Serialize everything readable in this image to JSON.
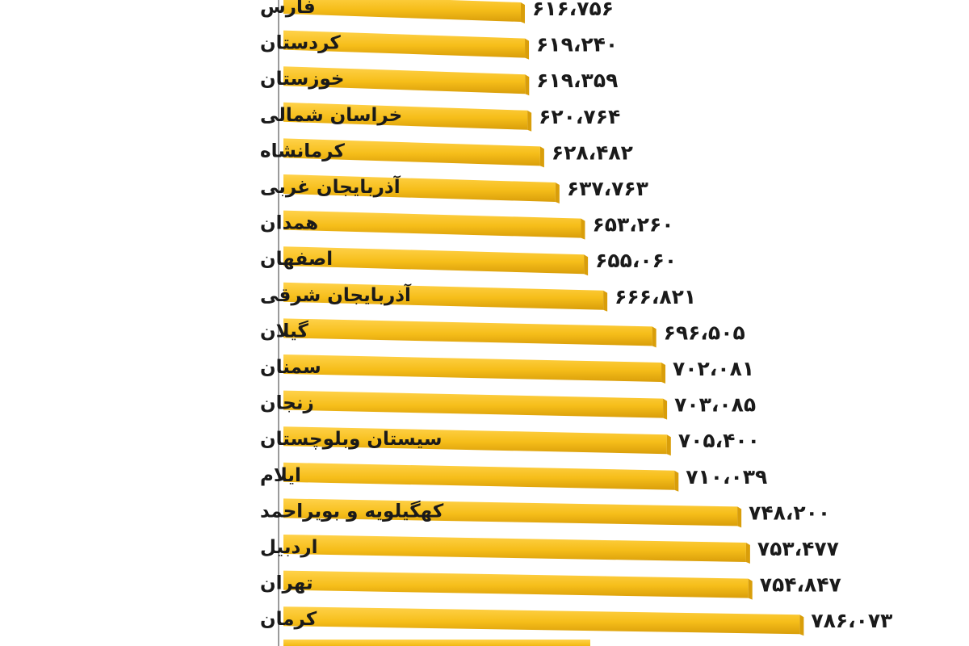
{
  "chart_data": {
    "type": "bar",
    "orientation": "horizontal",
    "categories": [
      "فارس",
      "کردستان",
      "خوزستان",
      "خراسان شمالی",
      "کرمانشاه",
      "آذربایجان غربی",
      "همدان",
      "اصفهان",
      "آذربایجان شرقی",
      "گیلان",
      "سمنان",
      "زنجان",
      "سیستان وبلوچستان",
      "ایلام",
      "کهگیلویه و بویراحمد",
      "اردبیل",
      "تهران",
      "کرمان"
    ],
    "values": [
      616756,
      619240,
      619359,
      620764,
      628482,
      637763,
      653260,
      655060,
      666821,
      696505,
      702081,
      703085,
      705400,
      710039,
      748200,
      753477,
      754847,
      786073
    ],
    "value_labels": [
      "۶۱۶،۷۵۶",
      "۶۱۹،۲۴۰",
      "۶۱۹،۳۵۹",
      "۶۲۰،۷۶۴",
      "۶۲۸،۴۸۲",
      "۶۳۷،۷۶۳",
      "۶۵۳،۲۶۰",
      "۶۵۵،۰۶۰",
      "۶۶۶،۸۲۱",
      "۶۹۶،۵۰۵",
      "۷۰۲،۰۸۱",
      "۷۰۳،۰۸۵",
      "۷۰۵،۴۰۰",
      "۷۱۰،۰۳۹",
      "۷۴۸،۲۰۰",
      "۷۵۳،۴۷۷",
      "۷۵۴،۸۴۷",
      "۷۸۶،۰۷۳"
    ],
    "title": "",
    "xlabel": "",
    "ylabel": "",
    "grid": false,
    "legend": "none",
    "bar_color": "#F6BE1A",
    "bar_shadow_color": "#D99E0A",
    "axis_color": "#9a9a9a"
  }
}
